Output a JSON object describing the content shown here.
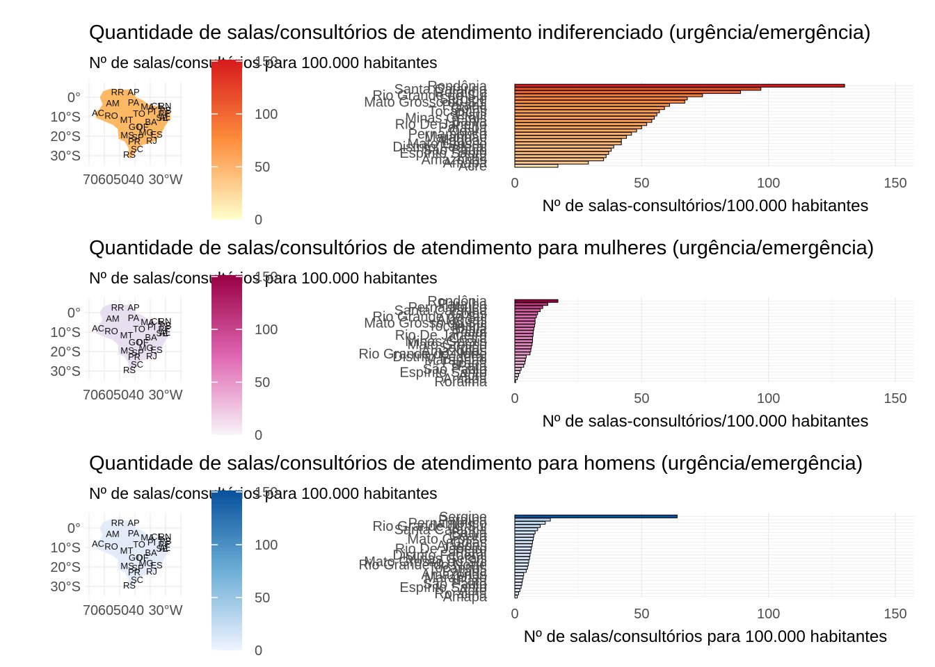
{
  "chart_data": [
    {
      "type": "bar",
      "title": "Quantidade de salas/consultórios de atendimento indiferenciado (urgência/emergência)",
      "subtitle": "Nº de salas/consultórios para 100.000 habitantes",
      "xlabel": "Nº de salas-consultórios/100.000 habitantes",
      "xlim": [
        0,
        157
      ],
      "xticks": [
        0,
        50,
        100,
        150
      ],
      "legend_ticks": [
        0,
        50,
        100,
        150
      ],
      "colors": {
        "low": "#ffffcc",
        "mid": "#fd8d3c",
        "high": "#d7191c",
        "map_base": "#fdb863"
      },
      "categories": [
        "Rondônia",
        "Santa Catarina",
        "Roraima",
        "Rio Grande do Sul",
        "Sergipe",
        "Mato Grosso do Sul",
        "Paraná",
        "Goiás",
        "Tocantins",
        "Piauí",
        "Minas Gerais",
        "Bahia",
        "Rio De Janeiro",
        "Paraíba",
        "Ceará",
        "Pernambuco",
        "Maranhão",
        "Alagoas",
        "Mato Grosso",
        "Distrito Federal",
        "São Paulo",
        "Espírito Santo",
        "Pará",
        "Amazonas",
        "Amapá",
        "Acre"
      ],
      "values": [
        130,
        97,
        89,
        74,
        68,
        67,
        61,
        59,
        57,
        56,
        55,
        54,
        52,
        50,
        48,
        46,
        44,
        42,
        42,
        39,
        38,
        37,
        36,
        35,
        29,
        17
      ]
    },
    {
      "type": "bar",
      "title": "Quantidade de salas/consultórios de atendimento para mulheres (urgência/emergência)",
      "subtitle": "Nº de salas/consultórios para 100.000 habitantes",
      "xlabel": "Nº de salas-consultórios/100.000 habitantes",
      "xlim": [
        0,
        157
      ],
      "xticks": [
        0,
        50,
        100,
        150
      ],
      "legend_ticks": [
        0,
        50,
        100,
        150
      ],
      "colors": {
        "low": "#f7f4f9",
        "mid": "#df65b0",
        "high": "#980043",
        "map_base": "#e7dff0"
      },
      "categories": [
        "Rondônia",
        "Paraíba",
        "Pernambuco",
        "Santa Catarina",
        "Goiás",
        "Rio Grande do Sul",
        "Alagoas",
        "Mato Grosso do Sul",
        "Tocantins",
        "Bahia",
        "Piauí",
        "Rio De Janeiro",
        "Ceará",
        "Minas Gerais",
        "Mato Grosso",
        "Sergipe",
        "Amazonas",
        "Rio Grande do Norte",
        "Distrito Federal",
        "Maranhão",
        "Paraná",
        "Pará",
        "São Paulo",
        "Espírito Santo",
        "Acre",
        "Amapá",
        "Roraima"
      ],
      "values": [
        17,
        13,
        11,
        10,
        9,
        8.5,
        8,
        8,
        7.8,
        7.5,
        7.3,
        7.2,
        7,
        7,
        6.8,
        6.5,
        6.3,
        6,
        4.5,
        4.2,
        4,
        3.5,
        2.5,
        2,
        1.5,
        1,
        0.3
      ]
    },
    {
      "type": "bar",
      "title": "Quantidade de salas/consultórios de atendimento para homens (urgência/emergência)",
      "subtitle": "Nº de salas/consultórios para 100.000 habitantes",
      "xlabel": "Nº de salas/consultórios para 100.000 habitantes",
      "xlim": [
        0,
        157
      ],
      "xticks": [
        0,
        50,
        100,
        150
      ],
      "legend_ticks": [
        0,
        50,
        100,
        150
      ],
      "colors": {
        "low": "#eff3ff",
        "mid": "#6baed6",
        "high": "#08519c",
        "map_base": "#e3ebf8"
      },
      "categories": [
        "Sergipe",
        "Paraíba",
        "Pernambuco",
        "Rio Grande do Sul",
        "Santa Catarina",
        "Bahia",
        "Ceará",
        "Mato Grosso",
        "Goiás",
        "Alagoas",
        "Rio De Janeiro",
        "Piauí",
        "Distrito Federal",
        "Minas Gerais",
        "Mato Grosso do Sul",
        "Rio Grande do Norte",
        "Tocantins",
        "Paraná",
        "Amazonas",
        "Maranhão",
        "Pará",
        "São Paulo",
        "Espírito Santo",
        "Acre",
        "Roraima",
        "Amapá"
      ],
      "values": [
        64,
        14,
        12,
        10,
        9,
        8,
        7.5,
        7.3,
        7,
        6.8,
        6.5,
        6.3,
        6,
        5.8,
        5.5,
        5.3,
        5,
        4.5,
        3.5,
        3.3,
        3,
        2.8,
        2.5,
        2,
        1.5,
        1
      ]
    }
  ],
  "map": {
    "lat_ticks": [
      "0°",
      "10°S",
      "20°S",
      "30°S"
    ],
    "lon_ticks": [
      "70",
      "60",
      "50",
      "40",
      "30°W"
    ],
    "state_labels": [
      "RR",
      "AP",
      "AM",
      "PA",
      "MA",
      "CE",
      "RN",
      "PB",
      "AC",
      "RO",
      "TO",
      "PI",
      "PE",
      "AL",
      "SE",
      "MT",
      "BA",
      "GO",
      "DF",
      "MG",
      "ES",
      "MS",
      "SP",
      "RJ",
      "PR",
      "SC",
      "RS"
    ]
  }
}
